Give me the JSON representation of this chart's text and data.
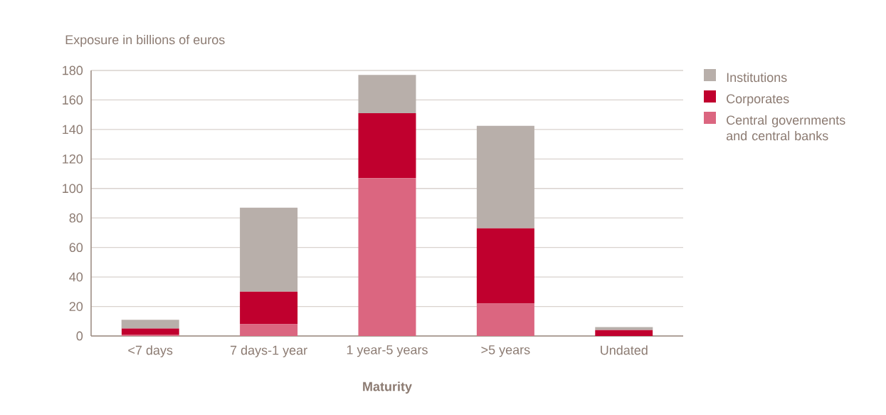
{
  "chart_data": {
    "type": "bar",
    "stacked": true,
    "xlabel": "Maturity",
    "ylabel": "Exposure in billions of euros",
    "categories": [
      "<7 days",
      "7 days-1 year",
      "1 year-5 years",
      ">5 years",
      "Undated"
    ],
    "series": [
      {
        "name": "Central governments and central banks",
        "color": "#db6680",
        "values": [
          1,
          8,
          107,
          22,
          0
        ]
      },
      {
        "name": "Corporates",
        "color": "#c0002e",
        "values": [
          4,
          22,
          44,
          51,
          4
        ]
      },
      {
        "name": "Institutions",
        "color": "#b8afaa",
        "values": [
          6,
          57,
          26,
          69.5,
          2
        ]
      }
    ],
    "ylim": [
      0,
      180
    ],
    "yticks": [
      0,
      20,
      40,
      60,
      80,
      100,
      120,
      140,
      160,
      180
    ],
    "grid": "y",
    "legend": "right"
  }
}
